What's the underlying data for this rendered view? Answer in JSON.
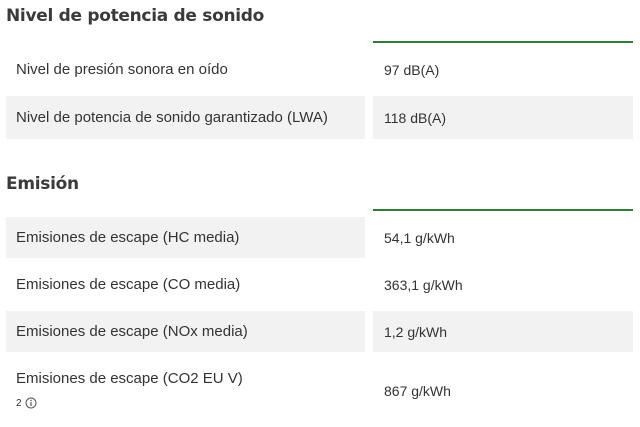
{
  "colors": {
    "accent": "#2e7d32",
    "row_shade": "#f2f2f2",
    "text": "#333333"
  },
  "sections": [
    {
      "title": "Nivel de potencia de sonido",
      "rows": [
        {
          "label": "Nivel de presión sonora en oído",
          "value": "97 dB(A)"
        },
        {
          "label": "Nivel de potencia de sonido garantizado (LWA)",
          "value": "118 dB(A)"
        }
      ]
    },
    {
      "title": "Emisión",
      "rows": [
        {
          "label": "Emisiones de escape (HC media)",
          "value": "54,1 g/kWh"
        },
        {
          "label": "Emisiones de escape (CO media)",
          "value": "363,1 g/kWh"
        },
        {
          "label": "Emisiones de escape (NOx media)",
          "value": "1,2 g/kWh"
        },
        {
          "label": "Emisiones de escape (CO2 EU V)",
          "value": "867 g/kWh",
          "footnote": "2",
          "footnote_icon": "info-icon"
        }
      ]
    }
  ]
}
